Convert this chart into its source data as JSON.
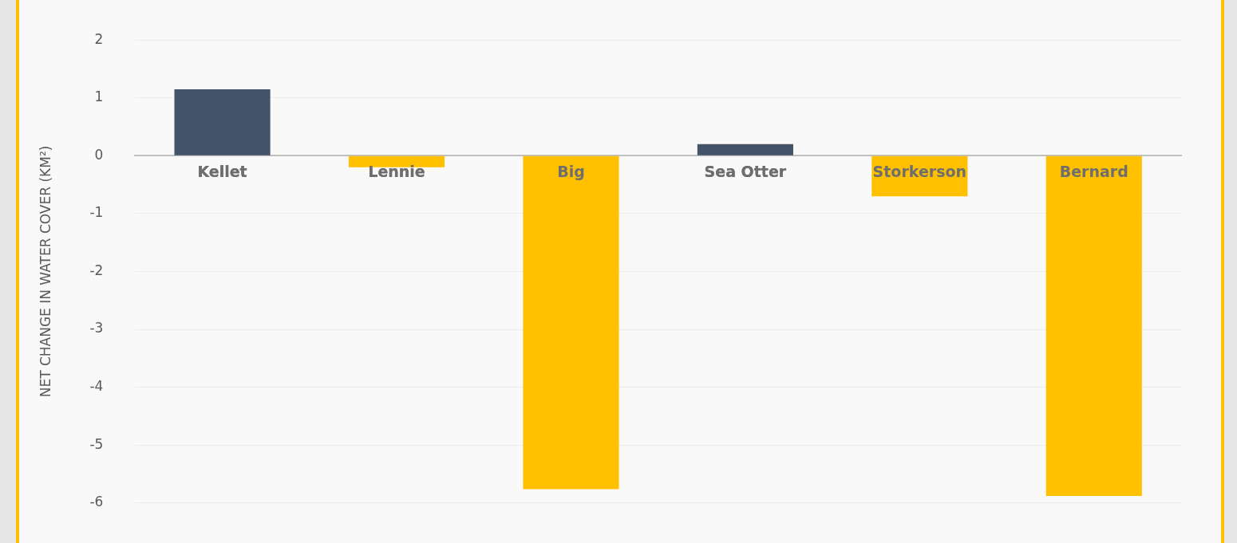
{
  "chart_data": {
    "type": "bar",
    "ylabel": "NET CHANGE IN WATER COVER (KM²)",
    "categories": [
      "Kellet",
      "Lennie",
      "Big",
      "Sea Otter",
      "Storkerson",
      "Bernard"
    ],
    "values": [
      1.15,
      -0.2,
      -5.76,
      0.2,
      -0.7,
      -5.88
    ],
    "colors": [
      "#435369",
      "#ffc000",
      "#ffc000",
      "#435369",
      "#ffc000",
      "#ffc000"
    ],
    "ylim": [
      -6,
      2
    ],
    "yticks": [
      -6,
      -5,
      -4,
      -3,
      -2,
      -1,
      0,
      1,
      2
    ],
    "grid": "y",
    "legend": false
  }
}
